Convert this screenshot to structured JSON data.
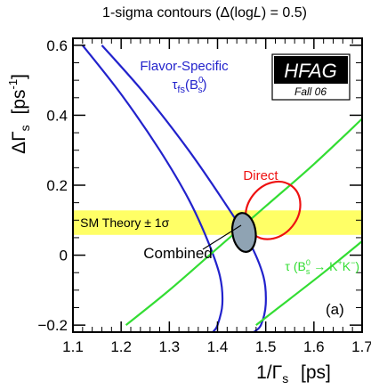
{
  "chart_data": {
    "type": "line",
    "title": "1-sigma contours (Δ(logL) = 0.5)",
    "title_parts": {
      "prefix": "1-sigma contours (Δ(log",
      "var": "L",
      "suffix": ") = 0.5)"
    },
    "xlabel": "1/Γs  [ps]",
    "xlabel_parts": {
      "main": "1/Γ",
      "sub": "s",
      "unit": "[ps]"
    },
    "ylabel": "ΔΓs [ps-1]",
    "ylabel_parts": {
      "main": "ΔΓ",
      "sub": "s",
      "unit": "[ps",
      "sup": "-1",
      "close": "]"
    },
    "xlim": [
      1.1,
      1.7
    ],
    "ylim": [
      -0.22,
      0.62
    ],
    "x_ticks": [
      "1.1",
      "1.2",
      "1.3",
      "1.4",
      "1.5",
      "1.6",
      "1.7"
    ],
    "x_tick_values": [
      1.1,
      1.2,
      1.3,
      1.4,
      1.5,
      1.6,
      1.7
    ],
    "y_ticks": [
      "−0.2",
      "0",
      "0.2",
      "0.4",
      "0.6"
    ],
    "y_tick_values": [
      -0.2,
      0,
      0.2,
      0.4,
      0.6
    ],
    "colors": {
      "flavor": "#2222cc",
      "tau": "#33dd33",
      "direct": "#ee1111",
      "band": "#ffff66",
      "combined": "#8fa3b3"
    },
    "sm_band": {
      "label": "SM Theory ± 1σ",
      "ymin": 0.058,
      "ymax": 0.128
    },
    "series": [
      {
        "name": "Flavor-Specific",
        "x": [
          1.12,
          1.2,
          1.28,
          1.34,
          1.38,
          1.405,
          1.41,
          1.4,
          1.39
        ],
        "y": [
          0.6,
          0.46,
          0.3,
          0.16,
          0.04,
          -0.06,
          -0.14,
          -0.2,
          -0.22
        ]
      },
      {
        "name": "Flavor-Specific upper",
        "x": [
          1.16,
          1.25,
          1.34,
          1.41,
          1.465,
          1.495,
          1.5,
          1.49,
          1.475
        ],
        "y": [
          0.6,
          0.46,
          0.3,
          0.16,
          0.04,
          -0.06,
          -0.14,
          -0.2,
          -0.22
        ]
      },
      {
        "name": "τ upper",
        "x": [
          1.21,
          1.3,
          1.4,
          1.5,
          1.6,
          1.7
        ],
        "y": [
          -0.2,
          -0.1,
          0.02,
          0.14,
          0.26,
          0.39
        ]
      },
      {
        "name": "τ lower",
        "x": [
          1.48,
          1.55,
          1.62,
          1.7
        ],
        "y": [
          -0.2,
          -0.125,
          -0.05,
          0.04
        ]
      }
    ],
    "direct_contour": {
      "name": "Direct",
      "cx": 1.515,
      "cy": 0.128,
      "rx": 0.052,
      "ry": 0.088,
      "angle_deg": 38
    },
    "combined_contour": {
      "name": "Combined",
      "cx": 1.455,
      "cy": 0.065,
      "rx": 0.024,
      "ry": 0.056,
      "angle_deg": -8
    },
    "annotations": {
      "flavor_label": "Flavor-Specific",
      "flavor_sub_parts": {
        "tau": "τ",
        "sub": "fs",
        "open": "(B",
        "bsub": "s",
        "bsup": "0",
        "close": ")"
      },
      "direct_label": "Direct",
      "combined_label": "Combined",
      "tau_label_parts": {
        "tau": "τ",
        "open": "(B",
        "bsub": "s",
        "bsup": "0",
        "arrow": "→ K",
        "k1": "+",
        "k2": "K",
        "k2sup": "−",
        "close": ")"
      },
      "panel_label": "(a)",
      "logo_text": "HFAG",
      "logo_sub": "Fall 06"
    }
  }
}
